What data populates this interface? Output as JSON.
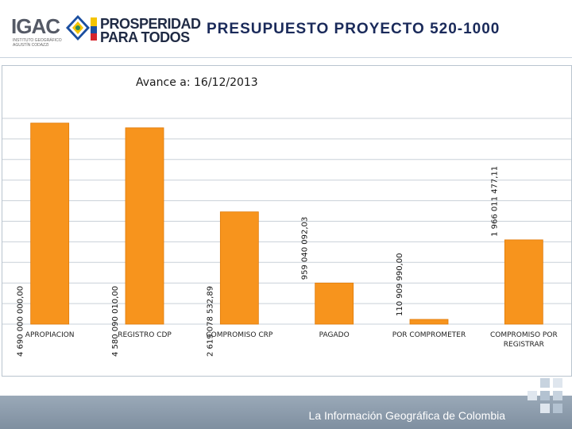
{
  "header": {
    "logo_igac": "IGAC",
    "logo_igac_sub": "INSTITUTO GEOGRÁFICO AGUSTÍN CODAZZI",
    "logo_pp_line1": "PROSPERIDAD",
    "logo_pp_line2": "PARA TODOS",
    "title": "PRESUPUESTO PROYECTO 520-1000"
  },
  "footer": {
    "text": "La Información Geográfica de Colombia"
  },
  "colors": {
    "bar": "#f7941d",
    "bar_dark": "#e07b0a",
    "grid": "#c9d0d8",
    "title": "#1a2a5a"
  },
  "chart_data": {
    "type": "bar",
    "subtitle": "Avance a: 16/12/2013",
    "categories": [
      "APROPIACION",
      "REGISTRO CDP",
      "COMPROMISO CRP",
      "PAGADO",
      "POR COMPROMETER",
      "COMPROMISO POR REGISTRAR"
    ],
    "values": [
      4690000000.0,
      4580090010.0,
      2619078532.89,
      959040092.03,
      110909990.0,
      1966011477.11
    ],
    "value_labels": [
      "4 690 000 000,00",
      "4 580 090 010,00",
      "2 619 078 532,89",
      "959 040 092,03",
      "110 909 990,00",
      "1 966 011 477,11"
    ],
    "ylim": [
      0,
      4800000000
    ],
    "grid": true,
    "legend": "none"
  }
}
